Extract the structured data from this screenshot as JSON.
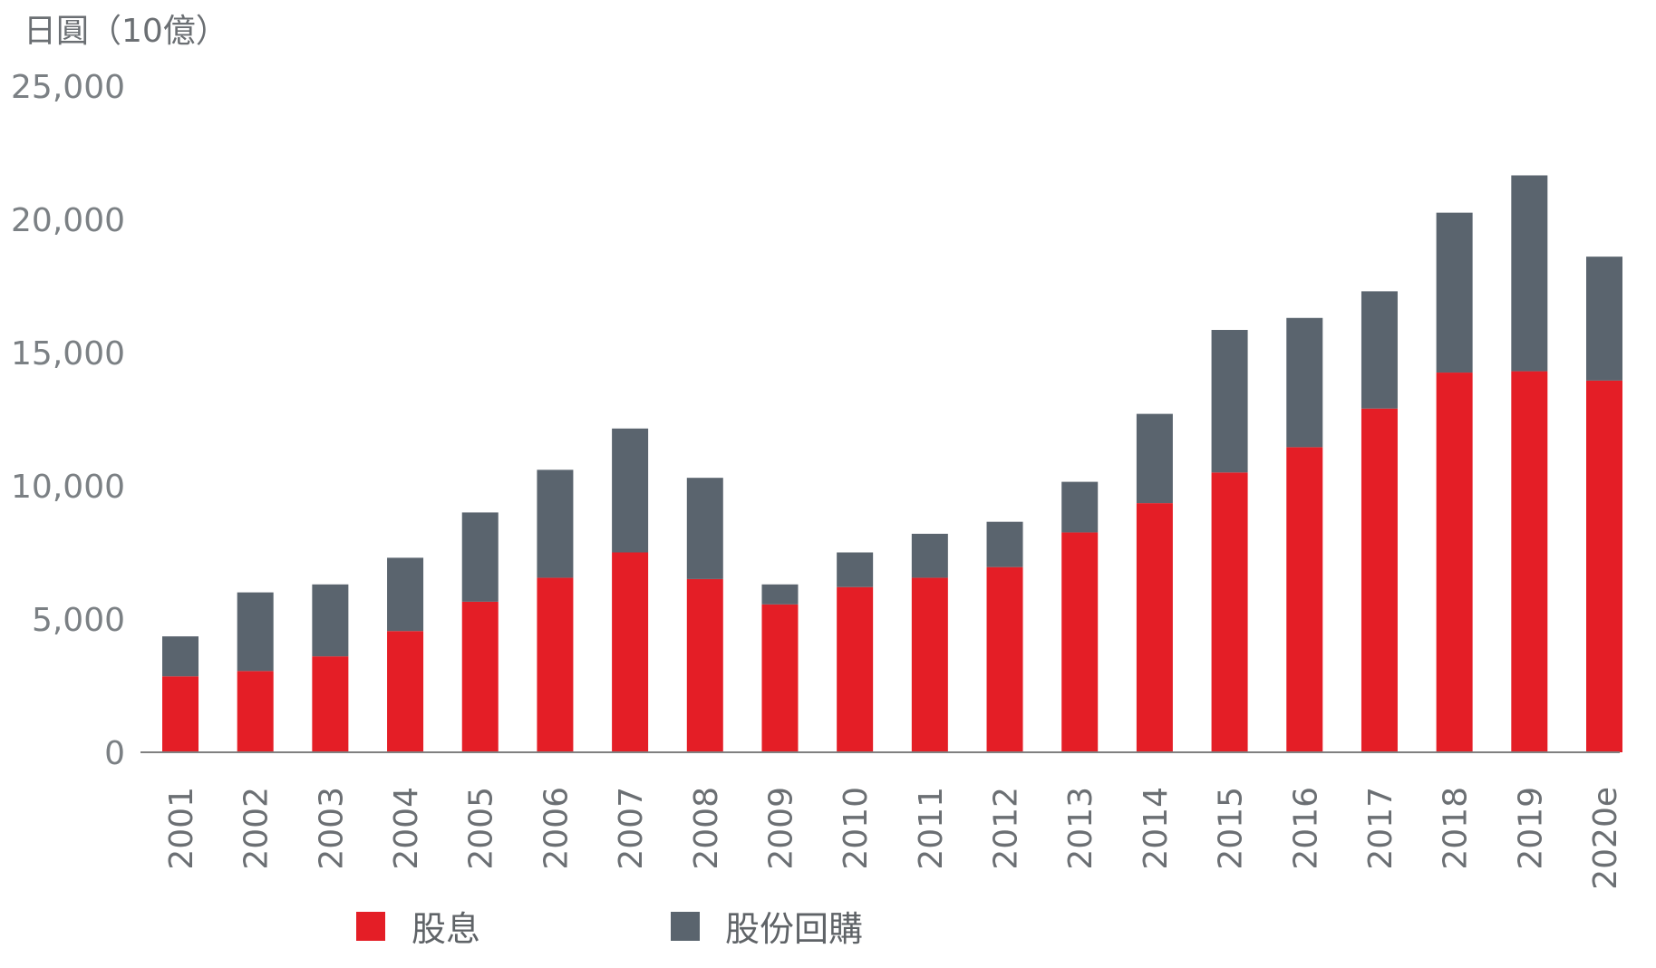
{
  "chart_data": {
    "type": "bar",
    "stacked": true,
    "ylabel": "日圓（10億）",
    "ylim": [
      0,
      25000
    ],
    "yticks": [
      0,
      5000,
      10000,
      15000,
      20000,
      25000
    ],
    "ytick_labels": [
      "0",
      "5,000",
      "10,000",
      "15,000",
      "20,000",
      "25,000"
    ],
    "categories": [
      "2001",
      "2002",
      "2003",
      "2004",
      "2005",
      "2006",
      "2007",
      "2008",
      "2009",
      "2010",
      "2011",
      "2012",
      "2013",
      "2014",
      "2015",
      "2016",
      "2017",
      "2018",
      "2019",
      "2020e"
    ],
    "series": [
      {
        "name": "股息",
        "color": "#e41e26",
        "values": [
          2850,
          3050,
          3600,
          4550,
          5650,
          6550,
          7500,
          6500,
          5550,
          6200,
          6550,
          6950,
          8250,
          9350,
          10500,
          11450,
          12900,
          14250,
          14300,
          13950
        ]
      },
      {
        "name": "股份回購",
        "color": "#5a646e",
        "values": [
          1500,
          2950,
          2700,
          2750,
          3350,
          4050,
          4650,
          3800,
          750,
          1300,
          1650,
          1700,
          1900,
          3350,
          5350,
          4850,
          4400,
          6000,
          7350,
          4650
        ]
      }
    ],
    "legend_position": "bottom-left",
    "grid": false,
    "axis_color": "#808080"
  }
}
